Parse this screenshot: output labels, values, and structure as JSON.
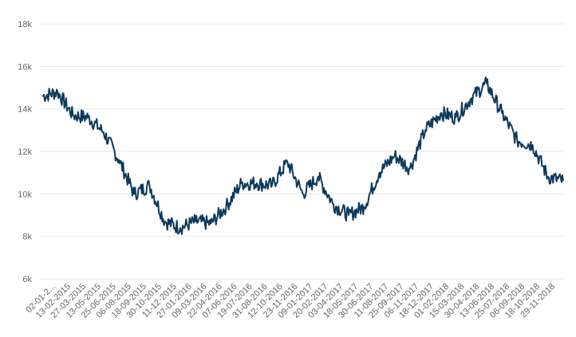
{
  "colors": {
    "series": "#0c3a5c",
    "grid": "#e6e6e6",
    "axis_text": "#666666"
  },
  "chart_data": {
    "type": "line",
    "title": "",
    "xlabel": "",
    "ylabel": "",
    "grid": true,
    "legend": "none",
    "ylim": [
      6000,
      18000
    ],
    "y_ticks": [
      6000,
      8000,
      10000,
      12000,
      14000,
      16000,
      18000
    ],
    "y_tick_labels": [
      "6k",
      "8k",
      "10k",
      "12k",
      "14k",
      "16k",
      "18k"
    ],
    "x_tick_labels": [
      "02-01-2...",
      "13-02-2015",
      "27-03-2015",
      "13-05-2015",
      "25-06-2015",
      "06-08-2015",
      "18-09-2015",
      "30-10-2015",
      "11-12-2015",
      "27-01-2016",
      "09-03-2016",
      "22-04-2016",
      "07-06-2016",
      "19-07-2016",
      "31-08-2016",
      "12-10-2016",
      "23-11-2016",
      "09-01-2017",
      "20-02-2017",
      "03-04-2017",
      "18-05-2017",
      "30-06-2017",
      "11-08-2017",
      "25-09-2017",
      "06-11-2017",
      "18-12-2017",
      "01-02-2018",
      "15-03-2018",
      "30-04-2018",
      "13-06-2018",
      "25-07-2018",
      "06-09-2018",
      "18-10-2018",
      "29-11-2018"
    ],
    "series": [
      {
        "x": [
          "02-01-2015",
          "13-02-2015",
          "27-03-2015",
          "13-05-2015",
          "25-06-2015",
          "06-08-2015",
          "18-09-2015",
          "30-10-2015",
          "11-12-2015",
          "27-01-2016",
          "09-03-2016",
          "22-04-2016",
          "07-06-2016",
          "19-07-2016",
          "31-08-2016",
          "12-10-2016",
          "23-11-2016",
          "09-01-2017",
          "20-02-2017",
          "03-04-2017",
          "18-05-2017",
          "30-06-2017",
          "11-08-2017",
          "25-09-2017",
          "06-11-2017",
          "18-12-2017",
          "01-02-2018",
          "15-03-2018",
          "30-04-2018",
          "13-06-2018",
          "25-07-2018",
          "06-09-2018",
          "18-10-2018",
          "29-11-2018",
          "31-12-2018"
        ],
        "values": [
          14600,
          14800,
          13700,
          13600,
          12900,
          11600,
          10000,
          10400,
          8700,
          8400,
          8700,
          8600,
          9400,
          10500,
          10500,
          10400,
          11500,
          10000,
          10800,
          9500,
          9000,
          9400,
          11000,
          11800,
          11200,
          13000,
          13800,
          13600,
          14500,
          15200,
          13800,
          12500,
          12300,
          10800,
          10600
        ]
      }
    ]
  }
}
